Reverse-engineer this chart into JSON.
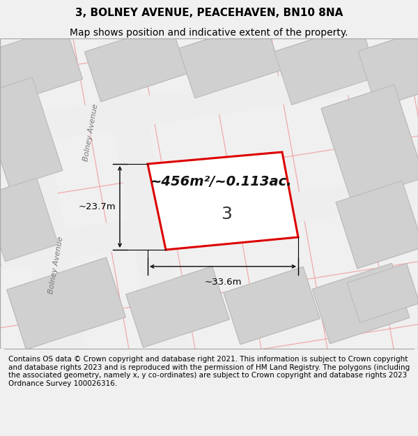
{
  "title_line1": "3, BOLNEY AVENUE, PEACEHAVEN, BN10 8NA",
  "title_line2": "Map shows position and indicative extent of the property.",
  "footer_text": "Contains OS data © Crown copyright and database right 2021. This information is subject to Crown copyright and database rights 2023 and is reproduced with the permission of HM Land Registry. The polygons (including the associated geometry, namely x, y co-ordinates) are subject to Crown copyright and database rights 2023 Ordnance Survey 100026316.",
  "area_label": "~456m²/~0.113ac.",
  "number_label": "3",
  "dim_width": "~33.6m",
  "dim_height": "~23.7m",
  "street_label": "Bolney Avenue",
  "bg_color": "#f0f0f0",
  "map_bg": "#e0e0e0",
  "building_fill": "#d0d0d0",
  "building_edge": "#bbbbbb",
  "plot_fill": "#ffffff",
  "plot_edge": "#dd0000",
  "road_fill": "#eeeeee",
  "road_pink": "#f0aaaa",
  "title_fontsize": 11,
  "subtitle_fontsize": 10,
  "footer_fontsize": 7.5,
  "street_fontsize": 8.0,
  "area_fontsize": 14,
  "number_fontsize": 18,
  "dim_fontsize": 9.5
}
